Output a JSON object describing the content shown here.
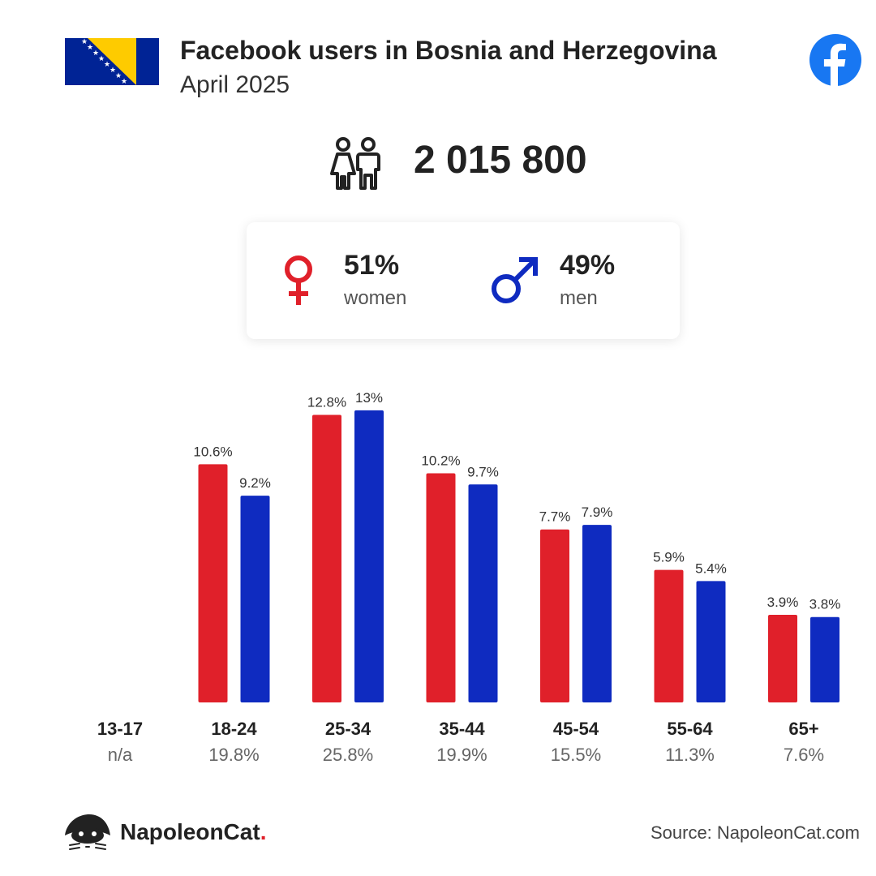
{
  "header": {
    "title": "Facebook users in Bosnia and Herzegovina",
    "subtitle": "April 2025"
  },
  "summary": {
    "total_users": "2 015 800",
    "women": {
      "percent": "51%",
      "label": "women"
    },
    "men": {
      "percent": "49%",
      "label": "men"
    }
  },
  "chart_data": {
    "type": "bar",
    "categories": [
      "13-17",
      "18-24",
      "25-34",
      "35-44",
      "45-54",
      "55-64",
      "65+"
    ],
    "category_totals": [
      "n/a",
      "19.8%",
      "25.8%",
      "19.9%",
      "15.5%",
      "11.3%",
      "7.6%"
    ],
    "series": [
      {
        "name": "women",
        "color": "#e0202a",
        "values": [
          null,
          10.6,
          12.8,
          10.2,
          7.7,
          5.9,
          3.9
        ],
        "labels": [
          "",
          "10.6%",
          "12.8%",
          "10.2%",
          "7.7%",
          "5.9%",
          "3.9%"
        ]
      },
      {
        "name": "men",
        "color": "#0f2bc0",
        "values": [
          null,
          9.2,
          13,
          9.7,
          7.9,
          5.4,
          3.8
        ],
        "labels": [
          "",
          "9.2%",
          "13%",
          "9.7%",
          "7.9%",
          "5.4%",
          "3.8%"
        ]
      }
    ],
    "ylim": [
      0,
      13
    ],
    "grid": false,
    "legend": "none"
  },
  "footer": {
    "brand_name": "NapoleonCat",
    "brand_suffix": ".",
    "source": "Source: NapoleonCat.com"
  },
  "icons": {
    "flag": "bosnia-herzegovina-flag-icon",
    "facebook": "facebook-logo-icon",
    "users": "people-icon",
    "female": "female-symbol-icon",
    "male": "male-symbol-icon"
  },
  "colors": {
    "women": "#e0202a",
    "men": "#0f2bc0",
    "facebook": "#1877f2",
    "flag_blue": "#002395",
    "flag_yellow": "#fecb00"
  }
}
